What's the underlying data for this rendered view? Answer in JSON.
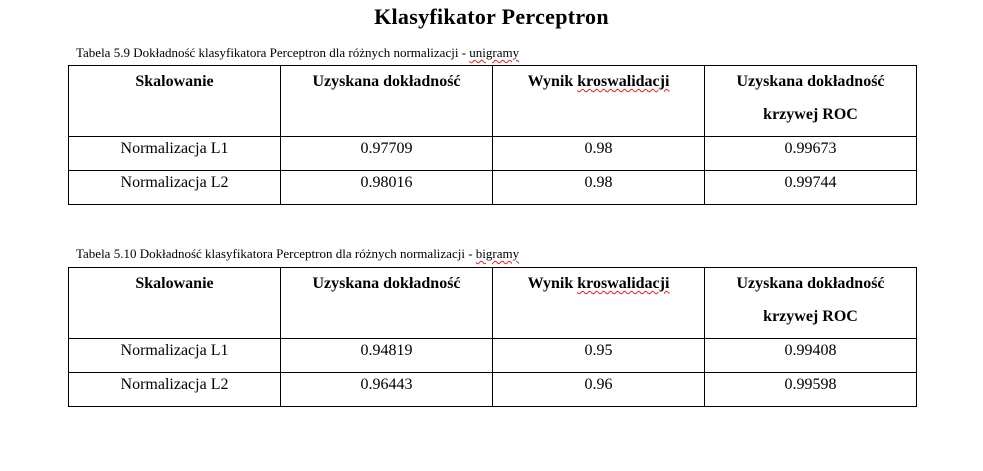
{
  "title": "Klasyfikator Perceptron",
  "tables": [
    {
      "caption_prefix": "Tabela 5.9  Dokładność klasyfikatora Perceptron dla różnych normalizacji - ",
      "caption_flagged": "unigramy",
      "headers": {
        "col1": "Skalowanie",
        "col2": "Uzyskana dokładność",
        "col3_word1": "Wynik ",
        "col3_word2": "kroswalidacji",
        "col4_line1": "Uzyskana dokładność",
        "col4_line2": "krzywej ROC"
      },
      "rows": [
        [
          "Normalizacja L1",
          "0.97709",
          "0.98",
          "0.99673"
        ],
        [
          "Normalizacja L2",
          "0.98016",
          "0.98",
          "0.99744"
        ]
      ]
    },
    {
      "caption_prefix": "Tabela 5.10  Dokładność klasyfikatora Perceptron dla różnych normalizacji - ",
      "caption_flagged": "bigramy",
      "headers": {
        "col1": "Skalowanie",
        "col2": "Uzyskana dokładność",
        "col3_word1": "Wynik ",
        "col3_word2": "kroswalidacji",
        "col4_line1": "Uzyskana dokładność",
        "col4_line2": "krzywej ROC"
      },
      "rows": [
        [
          "Normalizacja L1",
          "0.94819",
          "0.95",
          "0.99408"
        ],
        [
          "Normalizacja L2",
          "0.96443",
          "0.96",
          "0.99598"
        ]
      ]
    }
  ]
}
